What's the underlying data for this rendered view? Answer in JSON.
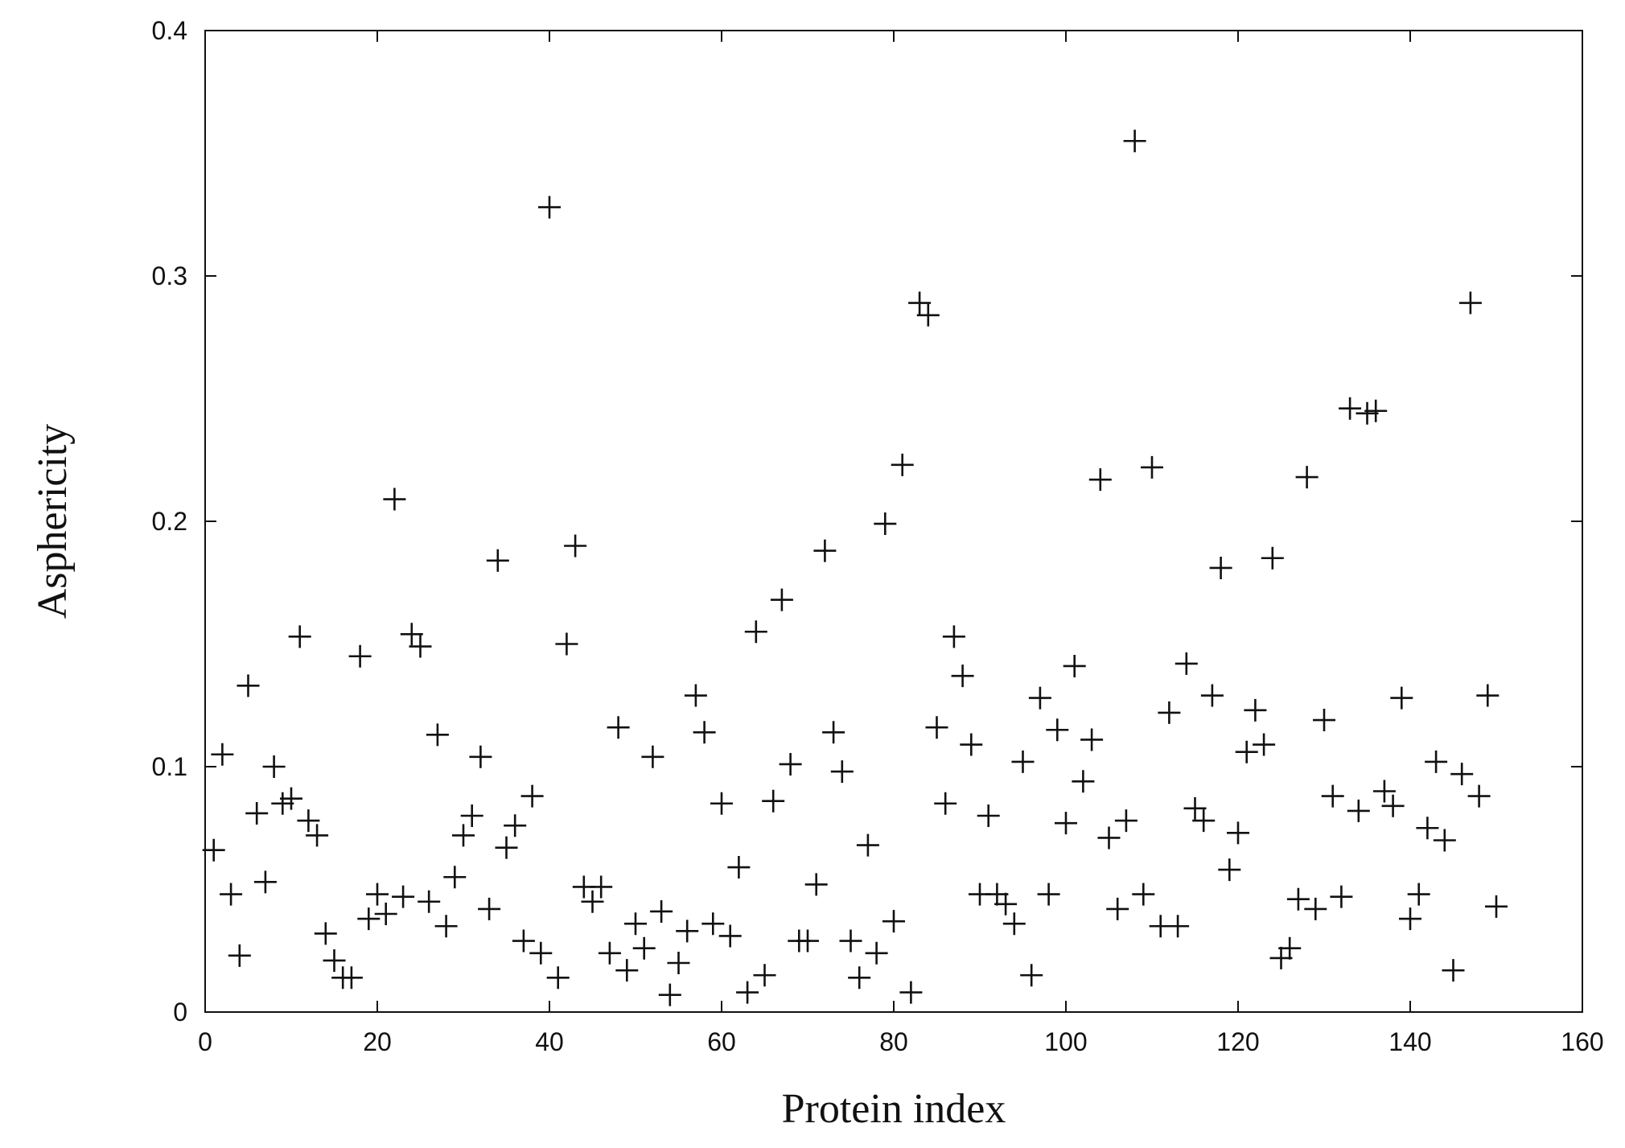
{
  "chart_data": {
    "type": "scatter",
    "x_label": "Protein index",
    "y_label": "Asphericity",
    "xlim": [
      0,
      160
    ],
    "ylim": [
      0,
      0.4
    ],
    "xticks": [
      0,
      20,
      40,
      60,
      80,
      100,
      120,
      140,
      160
    ],
    "yticks": [
      0,
      0.1,
      0.2,
      0.3,
      0.4
    ],
    "grid": false,
    "marker": "plus",
    "color": "#111111",
    "x": [
      1,
      2,
      3,
      4,
      5,
      6,
      7,
      8,
      9,
      10,
      11,
      12,
      13,
      14,
      15,
      16,
      17,
      18,
      19,
      20,
      21,
      22,
      23,
      24,
      25,
      26,
      27,
      28,
      29,
      30,
      31,
      32,
      33,
      34,
      35,
      36,
      37,
      38,
      39,
      40,
      41,
      42,
      43,
      44,
      45,
      46,
      47,
      48,
      49,
      50,
      51,
      52,
      53,
      54,
      55,
      56,
      57,
      58,
      59,
      60,
      61,
      62,
      63,
      64,
      65,
      66,
      67,
      68,
      69,
      70,
      71,
      72,
      73,
      74,
      75,
      76,
      77,
      78,
      79,
      80,
      81,
      82,
      83,
      84,
      85,
      86,
      87,
      88,
      89,
      90,
      91,
      92,
      93,
      94,
      95,
      96,
      97,
      98,
      99,
      100,
      101,
      102,
      103,
      104,
      105,
      106,
      107,
      108,
      109,
      110,
      111,
      112,
      113,
      114,
      115,
      116,
      117,
      118,
      119,
      120,
      121,
      122,
      123,
      124,
      125,
      126,
      127,
      128,
      129,
      130,
      131,
      132,
      133,
      134,
      135,
      136,
      137,
      138,
      139,
      140,
      141,
      142,
      143,
      144,
      145,
      146,
      147,
      148,
      149,
      150
    ],
    "values": [
      0.066,
      0.105,
      0.048,
      0.023,
      0.133,
      0.081,
      0.053,
      0.1,
      0.085,
      0.087,
      0.153,
      0.078,
      0.072,
      0.032,
      0.021,
      0.014,
      0.014,
      0.145,
      0.038,
      0.048,
      0.04,
      0.209,
      0.047,
      0.154,
      0.149,
      0.045,
      0.113,
      0.035,
      0.055,
      0.072,
      0.08,
      0.104,
      0.042,
      0.184,
      0.067,
      0.076,
      0.029,
      0.088,
      0.024,
      0.328,
      0.014,
      0.15,
      0.19,
      0.051,
      0.045,
      0.051,
      0.024,
      0.116,
      0.017,
      0.036,
      0.026,
      0.104,
      0.041,
      0.007,
      0.02,
      0.033,
      0.129,
      0.114,
      0.036,
      0.085,
      0.031,
      0.059,
      0.008,
      0.155,
      0.015,
      0.086,
      0.168,
      0.101,
      0.029,
      0.029,
      0.052,
      0.188,
      0.114,
      0.098,
      0.029,
      0.014,
      0.068,
      0.024,
      0.199,
      0.037,
      0.223,
      0.008,
      0.289,
      0.284,
      0.116,
      0.085,
      0.153,
      0.137,
      0.109,
      0.048,
      0.08,
      0.048,
      0.044,
      0.036,
      0.102,
      0.015,
      0.128,
      0.048,
      0.115,
      0.077,
      0.141,
      0.094,
      0.111,
      0.217,
      0.071,
      0.042,
      0.078,
      0.355,
      0.048,
      0.222,
      0.035,
      0.122,
      0.035,
      0.142,
      0.083,
      0.078,
      0.129,
      0.181,
      0.058,
      0.073,
      0.106,
      0.123,
      0.109,
      0.185,
      0.022,
      0.026,
      0.046,
      0.218,
      0.042,
      0.119,
      0.088,
      0.047,
      0.246,
      0.082,
      0.244,
      0.245,
      0.09,
      0.084,
      0.128,
      0.038,
      0.048,
      0.075,
      0.102,
      0.07,
      0.017,
      0.097,
      0.289,
      0.088,
      0.129,
      0.043
    ]
  }
}
